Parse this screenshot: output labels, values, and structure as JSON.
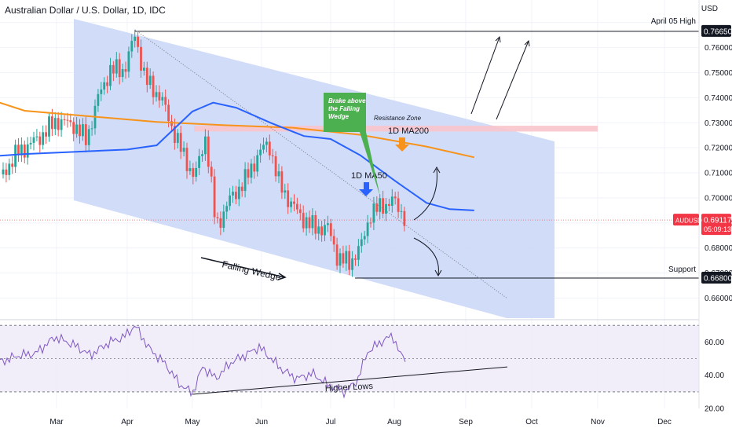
{
  "header": {
    "title": "Australian Dollar / U.S. Dollar, 1D, IDC",
    "currency": "USD"
  },
  "colors": {
    "up": "#26a69a",
    "down": "#ef5350",
    "ma50": "#2962ff",
    "ma200": "#f7931a",
    "wedge_fill": "#c9d6f7",
    "rsi": "#7e57c2",
    "rsi_band": "#ede7f6",
    "callout": "#4caf50",
    "resistance": "#f8c5cc",
    "price_badge": "#f23645"
  },
  "chart_data": [
    {
      "type": "candlestick",
      "symbol": "AUDUSD",
      "x_ticks": [
        "Mar",
        "Apr",
        "May",
        "Jun",
        "Jul",
        "Aug",
        "Sep",
        "Oct",
        "Nov",
        "Dec"
      ],
      "y_ticks": [
        "0.66000",
        "0.67000",
        "0.68000",
        "0.69000",
        "0.70000",
        "0.71000",
        "0.72000",
        "0.73000",
        "0.74000",
        "0.75000",
        "0.76000",
        "0.77000"
      ],
      "ylim": [
        0.652,
        0.779
      ],
      "price_labels": {
        "last": "0.69117",
        "countdown": "05:09:13",
        "symbol": "AUDUSD",
        "high_level": "0.76650",
        "support_level": "0.66800"
      },
      "levels": [
        {
          "name": "April 05 High",
          "value": 0.7665
        },
        {
          "name": "Support",
          "value": 0.668
        }
      ],
      "resistance_zone": {
        "label": "Resistance Zone",
        "from": 0.7268,
        "to": 0.7285
      },
      "moving_averages": [
        {
          "name": "1D MA200",
          "points": [
            [
              "Jan 29",
              0.7395
            ],
            [
              "Feb 15",
              0.7348
            ],
            [
              "Mar 15",
              0.7303
            ],
            [
              "Apr 15",
              0.729
            ],
            [
              "May 15",
              0.728
            ],
            [
              "Jun 15",
              0.7252
            ],
            [
              "Jul 15",
              0.7205
            ],
            [
              "Aug 5",
              0.7162
            ]
          ]
        },
        {
          "name": "1D MA50",
          "points": [
            [
              "Jan 29",
              0.7165
            ],
            [
              "Feb 15",
              0.7175
            ],
            [
              "Mar 1",
              0.7193
            ],
            [
              "Mar 15",
              0.721
            ],
            [
              "Apr 1",
              0.7345
            ],
            [
              "Apr 10",
              0.738
            ],
            [
              "Apr 20",
              0.736
            ],
            [
              "May 5",
              0.73
            ],
            [
              "May 20",
              0.7247
            ],
            [
              "Jun 1",
              0.7235
            ],
            [
              "Jun 15",
              0.717
            ],
            [
              "Jul 1",
              0.707
            ],
            [
              "Jul 15",
              0.698
            ],
            [
              "Jul 25",
              0.6955
            ],
            [
              "Aug 5",
              0.695
            ]
          ]
        }
      ],
      "annotations": {
        "callout": "Brake above the Falling Wedge",
        "pattern": "Falling Wedge",
        "ma200_label": "1D MA200",
        "ma50_label": "1D MA50"
      }
    },
    {
      "type": "line",
      "name": "RSI",
      "y_ticks": [
        "20.00",
        "40.00",
        "60.00"
      ],
      "ylim": [
        20,
        72
      ],
      "bands": [
        30,
        70
      ],
      "midline": 50,
      "annotation": "Higher Lows"
    }
  ]
}
